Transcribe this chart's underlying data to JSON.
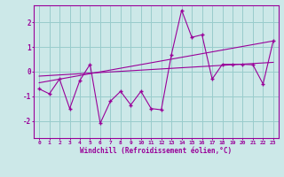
{
  "xlabel": "Windchill (Refroidissement éolien,°C)",
  "background_color": "#cce8e8",
  "grid_color": "#99cccc",
  "line_color": "#990099",
  "xlim": [
    -0.5,
    23.5
  ],
  "ylim": [
    -2.7,
    2.7
  ],
  "xticks": [
    0,
    1,
    2,
    3,
    4,
    5,
    6,
    7,
    8,
    9,
    10,
    11,
    12,
    13,
    14,
    15,
    16,
    17,
    18,
    19,
    20,
    21,
    22,
    23
  ],
  "yticks": [
    -2,
    -1,
    0,
    1,
    2
  ],
  "data_y": [
    -0.7,
    -0.9,
    -0.3,
    -1.5,
    -0.35,
    0.3,
    -2.1,
    -1.2,
    -0.8,
    -1.35,
    -0.8,
    -1.5,
    -1.55,
    0.7,
    2.5,
    1.4,
    1.5,
    -0.3,
    0.3,
    0.3,
    0.3,
    0.28,
    -0.5,
    1.25
  ],
  "trend1_x": [
    0,
    23
  ],
  "trend1_y": [
    -0.45,
    1.25
  ],
  "trend2_x": [
    0,
    23
  ],
  "trend2_y": [
    -0.18,
    0.38
  ]
}
